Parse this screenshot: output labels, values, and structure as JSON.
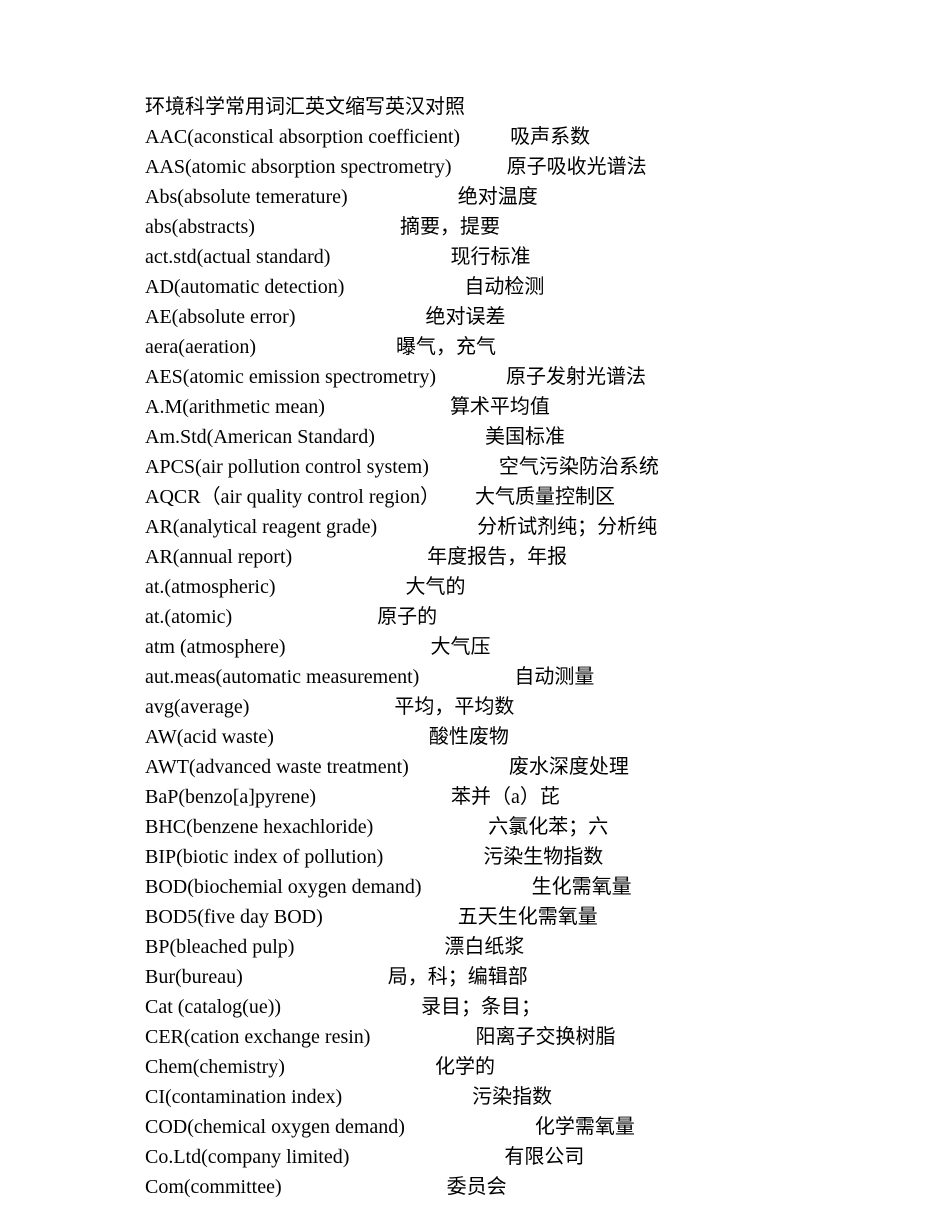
{
  "title": "环境科学常用词汇英文缩写英汉对照",
  "entries": [
    {
      "en": "AAC(aconstical absorption coefficient)",
      "spaces": "          ",
      "cn": "吸声系数"
    },
    {
      "en": "AAS(atomic absorption spectrometry)",
      "spaces": "           ",
      "cn": "原子吸收光谱法"
    },
    {
      "en": "Abs(absolute temerature)",
      "spaces": "                      ",
      "cn": "绝对温度"
    },
    {
      "en": "abs(abstracts)",
      "spaces": "                             ",
      "cn": "摘要，提要"
    },
    {
      "en": "act.std(actual standard)",
      "spaces": "                        ",
      "cn": "现行标准"
    },
    {
      "en": "AD(automatic detection)",
      "spaces": "                        ",
      "cn": "自动检测"
    },
    {
      "en": "AE(absolute error)",
      "spaces": "                          ",
      "cn": "绝对误差"
    },
    {
      "en": "aera(aeration)",
      "spaces": "                            ",
      "cn": "曝气，充气"
    },
    {
      "en": "AES(atomic emission spectrometry)",
      "spaces": "              ",
      "cn": "原子发射光谱法"
    },
    {
      "en": "A.M(arithmetic mean)",
      "spaces": "                         ",
      "cn": "算术平均值"
    },
    {
      "en": "Am.Std(American Standard)",
      "spaces": "                      ",
      "cn": "美国标准"
    },
    {
      "en": "APCS(air pollution control system)",
      "spaces": "              ",
      "cn": "空气污染防治系统"
    },
    {
      "en": "AQCR（air quality control region）",
      "spaces": "       ",
      "cn": "大气质量控制区"
    },
    {
      "en": "AR(analytical reagent grade)",
      "spaces": "                    ",
      "cn": "分析试剂纯；分析纯"
    },
    {
      "en": "AR(annual report)",
      "spaces": "                           ",
      "cn": "年度报告，年报"
    },
    {
      "en": "at.(atmospheric)",
      "spaces": "                          ",
      "cn": "大气的"
    },
    {
      "en": "at.(atomic)",
      "spaces": "                             ",
      "cn": "原子的"
    },
    {
      "en": "atm (atmosphere)",
      "spaces": "                             ",
      "cn": "大气压"
    },
    {
      "en": "aut.meas(automatic measurement)",
      "spaces": "                   ",
      "cn": "自动测量"
    },
    {
      "en": "avg(average)",
      "spaces": "                             ",
      "cn": "平均，平均数"
    },
    {
      "en": "AW(acid waste)",
      "spaces": "                               ",
      "cn": "酸性废物"
    },
    {
      "en": "AWT(advanced waste treatment)",
      "spaces": "                    ",
      "cn": "废水深度处理"
    },
    {
      "en": "BaP(benzo[a]pyrene)",
      "spaces": "                           ",
      "cn": "苯并（a）芘"
    },
    {
      "en": "BHC(benzene hexachloride)",
      "spaces": "                       ",
      "cn": "六氯化苯；六"
    },
    {
      "en": "BIP(biotic index of pollution)",
      "spaces": "                    ",
      "cn": "污染生物指数"
    },
    {
      "en": "BOD(biochemial oxygen demand)",
      "spaces": "                      ",
      "cn": "生化需氧量"
    },
    {
      "en": "BOD5(five day BOD)",
      "spaces": "                           ",
      "cn": "五天生化需氧量"
    },
    {
      "en": "BP(bleached pulp)",
      "spaces": "                              ",
      "cn": "漂白纸浆"
    },
    {
      "en": "Bur(bureau)",
      "spaces": "                             ",
      "cn": "局，科；编辑部"
    },
    {
      "en": "Cat (catalog(ue))",
      "spaces": "                            ",
      "cn": "录目；条目；"
    },
    {
      "en": "CER(cation exchange resin)",
      "spaces": "                     ",
      "cn": "阳离子交换树脂"
    },
    {
      "en": "Chem(chemistry)",
      "spaces": "                              ",
      "cn": "化学的"
    },
    {
      "en": "CI(contamination index)",
      "spaces": "                          ",
      "cn": "污染指数"
    },
    {
      "en": "COD(chemical oxygen demand)",
      "spaces": "                          ",
      "cn": "化学需氧量"
    },
    {
      "en": "Co.Ltd(company limited)",
      "spaces": "                               ",
      "cn": "有限公司"
    },
    {
      "en": "Com(committee)",
      "spaces": "                                 ",
      "cn": "委员会"
    }
  ]
}
